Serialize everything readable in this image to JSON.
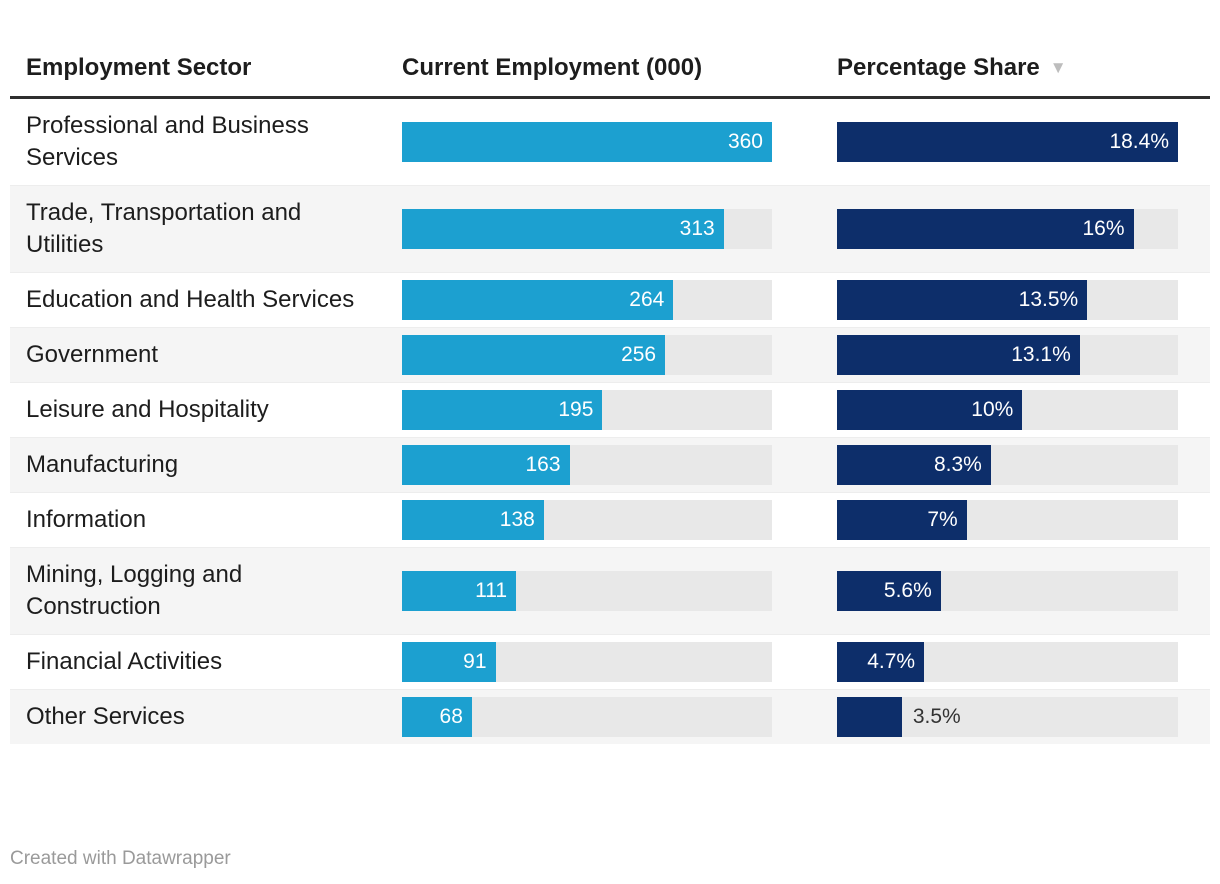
{
  "header": {
    "columns": [
      {
        "id": "sector",
        "label": "Employment Sector"
      },
      {
        "id": "employment",
        "label": "Current Employment (000)"
      },
      {
        "id": "share",
        "label": "Percentage Share"
      }
    ],
    "sort_icon": "▼",
    "sorted_column": "Percentage Share",
    "sort_direction": "descending"
  },
  "chart_data": {
    "type": "table",
    "columns": [
      "Employment Sector",
      "Current Employment (000)",
      "Percentage Share"
    ],
    "bar_axis_max_employment": 360,
    "bar_axis_max_share_pct": 18.4,
    "rows": [
      {
        "sector": "Professional and Business Services",
        "employment": 360,
        "employment_label": "360",
        "share_pct": 18.4,
        "share_label": "18.4%",
        "share_label_outside": false
      },
      {
        "sector": "Trade, Transportation and Utilities",
        "employment": 313,
        "employment_label": "313",
        "share_pct": 16,
        "share_label": "16%",
        "share_label_outside": false
      },
      {
        "sector": "Education and Health Services",
        "employment": 264,
        "employment_label": "264",
        "share_pct": 13.5,
        "share_label": "13.5%",
        "share_label_outside": false
      },
      {
        "sector": "Government",
        "employment": 256,
        "employment_label": "256",
        "share_pct": 13.1,
        "share_label": "13.1%",
        "share_label_outside": false
      },
      {
        "sector": "Leisure and Hospitality",
        "employment": 195,
        "employment_label": "195",
        "share_pct": 10,
        "share_label": "10%",
        "share_label_outside": false
      },
      {
        "sector": "Manufacturing",
        "employment": 163,
        "employment_label": "163",
        "share_pct": 8.3,
        "share_label": "8.3%",
        "share_label_outside": false
      },
      {
        "sector": "Information",
        "employment": 138,
        "employment_label": "138",
        "share_pct": 7,
        "share_label": "7%",
        "share_label_outside": false
      },
      {
        "sector": "Mining, Logging and Construction",
        "employment": 111,
        "employment_label": "111",
        "share_pct": 5.6,
        "share_label": "5.6%",
        "share_label_outside": false
      },
      {
        "sector": "Financial Activities",
        "employment": 91,
        "employment_label": "91",
        "share_pct": 4.7,
        "share_label": "4.7%",
        "share_label_outside": false
      },
      {
        "sector": "Other Services",
        "employment": 68,
        "employment_label": "68",
        "share_pct": 3.5,
        "share_label": "3.5%",
        "share_label_outside": true
      }
    ]
  },
  "footer": {
    "attribution": "Created with Datawrapper"
  },
  "colors": {
    "employment_bar": "#1ca0d0",
    "share_bar": "#0d2e6a",
    "bar_track": "#e8e8e8",
    "row_stripe": "#f5f5f5",
    "header_rule": "#2e2e2e",
    "text": "#1d1d1d",
    "bar_label": "#ffffff",
    "outside_bar_label": "#333333",
    "sort_icon": "#bdbdbd",
    "attribution": "#9a9a9a"
  }
}
